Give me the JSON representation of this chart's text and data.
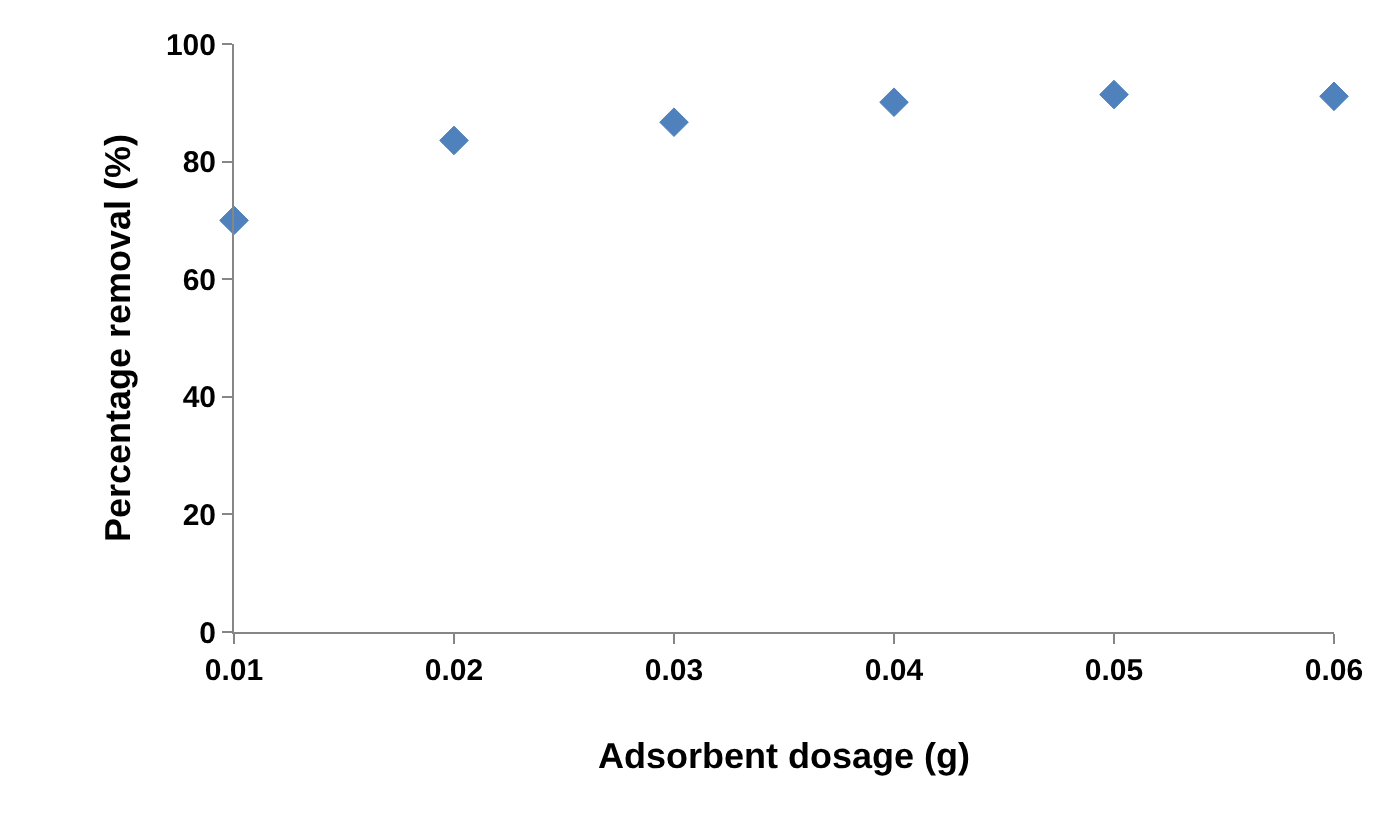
{
  "chart_data": {
    "type": "scatter",
    "xlabel": "Adsorbent dosage (g)",
    "ylabel": "Percentage removal (%)",
    "x": [
      0.01,
      0.02,
      0.03,
      0.04,
      0.05,
      0.06
    ],
    "series": [
      {
        "color": "#4f81bd",
        "values": [
          70,
          83.6,
          86.7,
          90.1,
          91.4,
          91.1
        ]
      }
    ],
    "xlim": [
      0.01,
      0.06
    ],
    "xticks": [
      0.01,
      0.02,
      0.03,
      0.04,
      0.05,
      0.06
    ],
    "ylim": [
      0,
      100
    ],
    "yticks": [
      0,
      20,
      40,
      60,
      80,
      100
    ],
    "legend": false,
    "marker": "diamond"
  }
}
